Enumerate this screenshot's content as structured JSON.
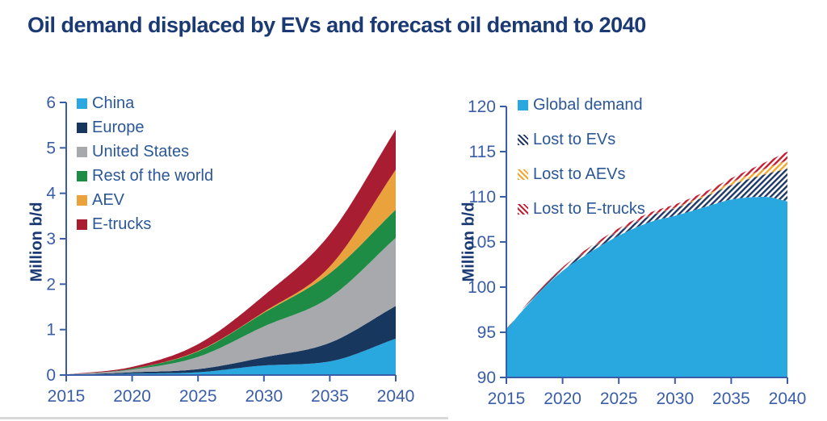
{
  "title": "Oil demand displaced by EVs and forecast oil demand to 2040",
  "colors": {
    "title_text": "#1b3a73",
    "legend_text": "#2b5797",
    "divider_gray": "#d9d9d9"
  },
  "chart_data": [
    {
      "type": "area",
      "stacked": true,
      "title": "",
      "xlabel": "",
      "ylabel": "Million b/d",
      "ylim": [
        0,
        6
      ],
      "xlim": [
        2015,
        2040
      ],
      "y_ticks": [
        0,
        1,
        2,
        3,
        4,
        5,
        6
      ],
      "x_ticks": [
        2015,
        2020,
        2025,
        2030,
        2035,
        2040
      ],
      "grid": false,
      "legend_position": "top-left-inside",
      "axis_color": "#3a5da8",
      "tick_color": "#3a5da8",
      "x": [
        2015,
        2020,
        2025,
        2030,
        2035,
        2040
      ],
      "series": [
        {
          "name": "China",
          "color": "#29a8e0",
          "pattern": "solid",
          "values": [
            0.0,
            0.03,
            0.06,
            0.21,
            0.3,
            0.8
          ]
        },
        {
          "name": "Europe",
          "color": "#17375e",
          "pattern": "solid",
          "values": [
            0.0,
            0.03,
            0.07,
            0.18,
            0.41,
            0.72
          ]
        },
        {
          "name": "United States",
          "color": "#a7a9ac",
          "pattern": "solid",
          "values": [
            0.01,
            0.06,
            0.27,
            0.68,
            1.0,
            1.5
          ]
        },
        {
          "name": "Rest of the world",
          "color": "#1e8c45",
          "pattern": "solid",
          "values": [
            0.0,
            0.02,
            0.12,
            0.3,
            0.53,
            0.62
          ]
        },
        {
          "name": "AEV",
          "color": "#eaa33c",
          "pattern": "solid",
          "values": [
            0.0,
            0.0,
            0.01,
            0.02,
            0.15,
            0.88
          ]
        },
        {
          "name": "E-trucks",
          "color": "#a91d33",
          "pattern": "solid",
          "values": [
            0.0,
            0.04,
            0.15,
            0.36,
            0.71,
            0.88
          ]
        }
      ]
    },
    {
      "type": "area",
      "stacked": true,
      "title": "",
      "xlabel": "",
      "ylabel": "Million b/d",
      "ylim": [
        90,
        120
      ],
      "xlim": [
        2015,
        2040
      ],
      "y_ticks": [
        90,
        95,
        100,
        105,
        110,
        115,
        120
      ],
      "x_ticks": [
        2015,
        2020,
        2025,
        2030,
        2035,
        2040
      ],
      "grid": false,
      "legend_position": "top-left-inside",
      "axis_color": "#3a5da8",
      "tick_color": "#3a5da8",
      "x": [
        2015,
        2017,
        2020,
        2022,
        2025,
        2028,
        2030,
        2033,
        2035,
        2038,
        2040
      ],
      "series": [
        {
          "name": "Global demand",
          "color": "#29a8e0",
          "pattern": "solid",
          "values": [
            95.3,
            98.2,
            101.8,
            103.5,
            105.7,
            107.3,
            107.9,
            109.0,
            109.7,
            110.0,
            109.5
          ]
        },
        {
          "name": "Lost to EVs",
          "color": "#1f3864",
          "pattern": "hatch",
          "values": [
            0.05,
            0.12,
            0.25,
            0.35,
            0.5,
            0.7,
            0.85,
            1.2,
            1.6,
            2.5,
            3.6
          ]
        },
        {
          "name": "Lost to AEVs",
          "color": "#f2a72e",
          "pattern": "hatch",
          "values": [
            0.0,
            0.0,
            0.0,
            0.01,
            0.02,
            0.03,
            0.05,
            0.15,
            0.3,
            0.6,
            0.95
          ]
        },
        {
          "name": "Lost to E-trucks",
          "color": "#c41e30",
          "pattern": "hatch",
          "values": [
            0.03,
            0.08,
            0.15,
            0.22,
            0.3,
            0.33,
            0.35,
            0.4,
            0.45,
            0.7,
            0.95
          ]
        }
      ]
    }
  ]
}
